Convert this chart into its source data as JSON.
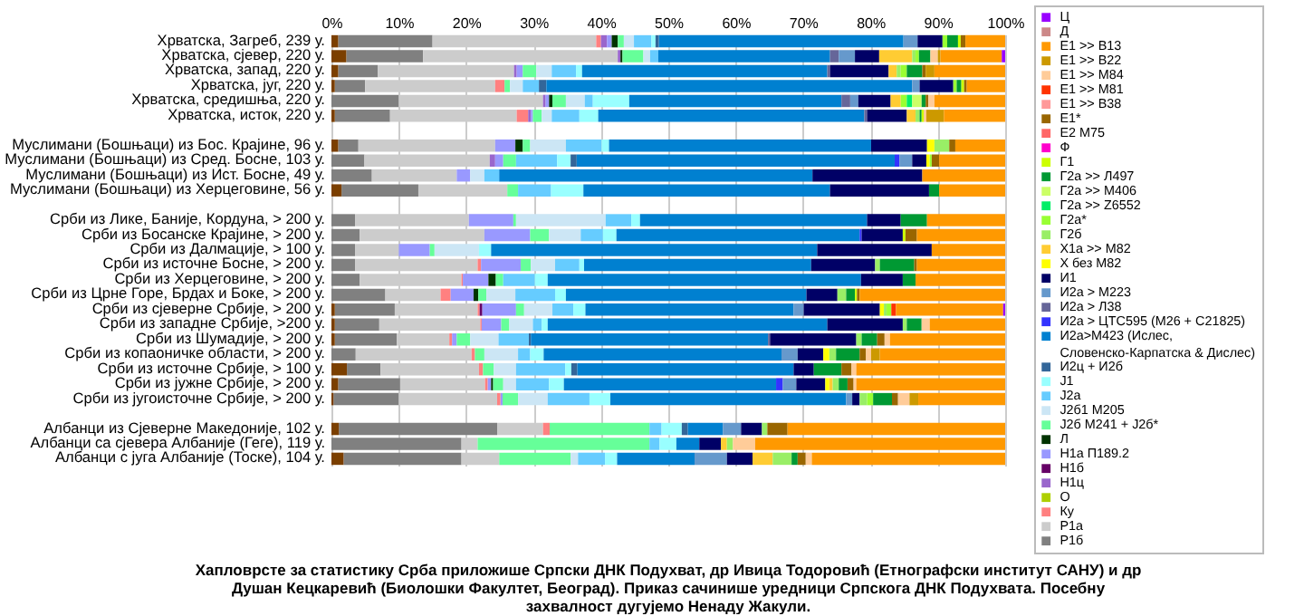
{
  "chart_data": {
    "type": "bar",
    "orientation": "horizontal",
    "stacked": true,
    "grid": "x",
    "legend": "right",
    "categories": [
      "Хрватска, Загреб, 239 у.",
      "Хрватска, сјевер, 220 у.",
      "Хрватска, запад, 220 у.",
      "Хрватска, југ, 220 у.",
      "Хрватска, средишња, 220 у.",
      "Хрватска, исток, 220 у.",
      null,
      "Муслимани (Бошњаци) из Бос. Крајине, 96 у.",
      "Муслимани (Бошњаци) из Сред. Босне, 103 у.",
      "Муслимани (Бошњаци) из Ист. Босне, 49 у.",
      "Муслимани (Бошњаци) из Херцеговине, 56 у.",
      null,
      "Срби из Лике, Баније, Кордуна, > 200 у.",
      "Срби из Босанске Крајине, > 200 у.",
      "Срби из Далмације, > 100 у.",
      "Срби из источне Босне, > 200 у.",
      "Срби из Херцеговине, > 200 у.",
      "Срби из Црне Горе, Брдах и Боке, > 200 у.",
      "Срби из сјеверне Србије, > 200 у.",
      "Срби из западне Србије, >200 у.",
      "Срби из Шумадије, > 200 у.",
      "Срби из копаоничке области, > 200 у.",
      "Срби из источне Србије, > 100 у.",
      "Срби из јужне Србије, > 200 у.",
      "Срби из југоисточне Србије, > 200 у.",
      null,
      "Албанци из Сјеверне Македоније, 102 у.",
      "Албанци са сјевера Албаније (Геге), 119 у.",
      "Албанци с југа Албаније (Тоске), 104 у."
    ],
    "xlim": [
      0,
      100
    ],
    "xticks": [
      {
        "value": 0,
        "label": "0%"
      },
      {
        "value": 10,
        "label": "10%"
      },
      {
        "value": 20,
        "label": "20%"
      },
      {
        "value": 30,
        "label": "30%"
      },
      {
        "value": 40,
        "label": "40%"
      },
      {
        "value": 50,
        "label": "50%"
      },
      {
        "value": 60,
        "label": "60%"
      },
      {
        "value": 70,
        "label": "70%"
      },
      {
        "value": 80,
        "label": "80%"
      },
      {
        "value": 90,
        "label": "90%"
      },
      {
        "value": 100,
        "label": "100%"
      }
    ],
    "annotations": [
      "Хапловрсте за статистику Срба приложише Српски ДНК Подухват, др Ивица Тодоровић (Етнографски институт САНУ) и др Душан Кецкаревић (Биолошки Факултет, Београд). Приказ сачинише уредници Српскога ДНК Подухвата. Посебну захвалност дугујемо Ненаду Жакули."
    ],
    "series": [
      {
        "color": "#7b3f00",
        "values": [
          1,
          2.2,
          1,
          0.5,
          0,
          0.5,
          null,
          1,
          0,
          0,
          1.5,
          null,
          0,
          0,
          0,
          0,
          0,
          0,
          0.5,
          0.5,
          0.5,
          0,
          2.3,
          1,
          0.3,
          null,
          1.1,
          0,
          1.8
        ]
      },
      {
        "name": "Р1б",
        "color": "#808080",
        "values": [
          14,
          11.4,
          5.9,
          4.5,
          10,
          8.2,
          null,
          3,
          4.9,
          6,
          11.4,
          null,
          3.5,
          4.2,
          3.5,
          3.5,
          4.2,
          8,
          8.9,
          6.6,
          9.2,
          3.6,
          5,
          9.2,
          9.7,
          null,
          23.5,
          19.3,
          17.5
        ]
      },
      {
        "name": "Р1а",
        "color": "#cccccc",
        "values": [
          24.3,
          28.9,
          20.2,
          19.3,
          21.4,
          18.8,
          null,
          20.3,
          18.6,
          12.6,
          13.2,
          null,
          16.9,
          18.5,
          6.5,
          18.2,
          15.1,
          8.2,
          12.3,
          15,
          7.8,
          17.2,
          14.6,
          12.6,
          14.6,
          null,
          6.8,
          2.4,
          5.6
        ]
      },
      {
        "name": "Ку",
        "color": "#ff8080",
        "values": [
          0.7,
          0,
          0,
          1.4,
          0,
          1.7,
          null,
          0,
          0,
          0,
          0,
          null,
          0,
          0,
          0,
          0.5,
          0.2,
          1.5,
          0.3,
          0.2,
          0.4,
          0.5,
          0.6,
          0.4,
          0.5,
          null,
          1,
          0,
          0
        ]
      },
      {
        "name": "О",
        "color": "#aecf00",
        "values": [
          0,
          0,
          0,
          0,
          0,
          0,
          null,
          0,
          0,
          0,
          0,
          null,
          0,
          0,
          0,
          0,
          0,
          0,
          0,
          0,
          0,
          0,
          0,
          0,
          0,
          null,
          0,
          0,
          0
        ]
      },
      {
        "name": "Н1ц",
        "color": "#9966cc",
        "values": [
          0.9,
          0.4,
          0.4,
          0,
          0.4,
          0.4,
          null,
          0,
          0.8,
          0,
          0,
          null,
          0,
          0,
          0,
          0,
          0,
          0,
          0,
          0,
          0,
          0,
          0,
          0,
          0,
          null,
          0,
          0,
          0
        ]
      },
      {
        "name": "Н1б",
        "color": "#660066",
        "values": [
          0,
          0,
          0,
          0,
          0,
          0,
          null,
          0,
          0,
          0,
          0,
          null,
          0,
          0,
          0,
          0,
          0,
          0,
          0.4,
          0,
          0,
          0,
          0,
          0,
          0,
          null,
          0,
          0,
          0
        ]
      },
      {
        "name": "Н1а П189.2",
        "color": "#9999ff",
        "values": [
          0.7,
          0,
          0.9,
          0,
          0.5,
          0.3,
          null,
          3,
          1.2,
          2,
          0,
          null,
          6.6,
          6.8,
          4.6,
          5.9,
          3.8,
          3.4,
          5,
          2.9,
          0.7,
          0,
          0,
          0.5,
          0.3,
          null,
          0,
          0,
          0
        ]
      },
      {
        "name": "Л",
        "color": "#003300",
        "values": [
          0.9,
          0.3,
          0,
          0,
          0.5,
          0,
          null,
          1.1,
          0,
          0,
          0,
          null,
          0,
          0,
          0,
          0,
          1.1,
          0.7,
          0,
          0,
          0,
          0,
          0,
          0.3,
          0,
          null,
          0,
          0,
          0
        ]
      },
      {
        "name": "J2б M241 + J2б*",
        "color": "#66ff99",
        "values": [
          0.9,
          3.1,
          2,
          0.8,
          2,
          1.3,
          null,
          1.1,
          1.9,
          0,
          1.6,
          null,
          0.4,
          2.8,
          0.7,
          1.5,
          1.1,
          1.2,
          1.2,
          1.2,
          2,
          1.4,
          1.6,
          1.5,
          2.3,
          null,
          14.8,
          25.5,
          10.6
        ]
      },
      {
        "name": "J2б1 M205",
        "color": "#cce6f5",
        "values": [
          1.5,
          1,
          2.3,
          1.9,
          2.8,
          1.5,
          null,
          5.3,
          0,
          2.1,
          0,
          null,
          13.3,
          4.7,
          6.6,
          3.6,
          0,
          4.3,
          4.2,
          3.5,
          4.2,
          5,
          3.3,
          1.9,
          4.4,
          null,
          0,
          0,
          1.1
        ]
      },
      {
        "name": "J2a",
        "color": "#66ccff",
        "values": [
          2.6,
          1.2,
          3.6,
          2.4,
          1.2,
          4.1,
          null,
          5.3,
          6.1,
          2.2,
          4.9,
          null,
          3.8,
          3.3,
          0,
          3.6,
          4.7,
          5.9,
          3.1,
          1.3,
          4.5,
          1.8,
          7.3,
          4.9,
          6.2,
          null,
          1.8,
          1.5,
          4
        ]
      },
      {
        "name": "J1",
        "color": "#99ffff",
        "values": [
          0.6,
          0,
          0.9,
          0,
          5.4,
          2.8,
          null,
          1.1,
          2,
          0,
          4.8,
          null,
          1.3,
          2,
          1.8,
          0.7,
          1.9,
          1.6,
          1.8,
          0.9,
          0,
          2,
          0.9,
          2.2,
          3.1,
          null,
          3,
          2.5,
          1.8
        ]
      },
      {
        "name": "И2ц + И2б",
        "color": "#336699",
        "values": [
          0.5,
          0,
          0,
          1.1,
          0,
          0,
          null,
          0,
          0.9,
          0,
          0,
          null,
          0,
          0,
          0,
          0,
          0,
          0,
          0,
          0,
          0.3,
          0,
          0.9,
          0,
          0,
          null,
          0.9,
          0,
          0
        ]
      },
      {
        "name": "И2а>M423 (Ислес, Словенско-Карпатска & Дислес)",
        "color": "#0080d0",
        "values": [
          36.3,
          25.5,
          36.4,
          54.3,
          31.5,
          39.5,
          null,
          38.9,
          47.2,
          46.5,
          36.6,
          null,
          33.7,
          36.1,
          48.4,
          33.7,
          46.5,
          35.7,
          30.9,
          41.5,
          35.2,
          35.3,
          32.1,
          31.5,
          35,
          null,
          5.2,
          3.4,
          11.5
        ]
      },
      {
        "name": "И2а > ЦТС595 (M26 + C21825)",
        "color": "#3333ff",
        "values": [
          0,
          0,
          0,
          0,
          0,
          0,
          null,
          0,
          0.7,
          0,
          0,
          null,
          0,
          0.3,
          0,
          0,
          0,
          0,
          0,
          0,
          0,
          0,
          0,
          1,
          0,
          null,
          0,
          0,
          0
        ]
      },
      {
        "name": "И2а > Л38",
        "color": "#666699",
        "values": [
          0,
          1.3,
          0.4,
          0,
          1.3,
          0.4,
          null,
          0,
          0,
          0,
          0,
          null,
          0,
          0,
          0,
          0,
          0,
          0,
          0,
          0,
          0.3,
          0,
          0,
          0,
          0,
          null,
          0,
          0,
          0
        ]
      },
      {
        "name": "И2а > M223",
        "color": "#6699cc",
        "values": [
          2.1,
          2.4,
          0,
          1.1,
          1.2,
          0,
          null,
          0,
          1.9,
          0,
          0,
          null,
          0,
          0,
          0,
          0,
          0,
          0,
          1.5,
          0,
          0,
          2.4,
          0,
          2,
          0.9,
          null,
          2.7,
          0,
          4.8
        ]
      },
      {
        "name": "И1",
        "color": "#000066",
        "values": [
          3.7,
          3.6,
          8.7,
          5,
          4.8,
          5.9,
          null,
          8.3,
          2.1,
          16.3,
          14.7,
          null,
          5,
          6.1,
          17,
          9.5,
          6.2,
          4.6,
          11.3,
          11.2,
          12.8,
          3.8,
          3,
          4.3,
          1.1,
          null,
          3.1,
          3.2,
          3.8
        ]
      },
      {
        "name": "Х без M82",
        "color": "#ffff00",
        "values": [
          0,
          0,
          0,
          0,
          0,
          0,
          null,
          1.1,
          0.5,
          0,
          0,
          null,
          0,
          0,
          0,
          0,
          0,
          0,
          0.6,
          0,
          0,
          0.9,
          0,
          0.6,
          0,
          null,
          0,
          0,
          0
        ]
      },
      {
        "name": "Х1а >> M82",
        "color": "#ffcc33",
        "values": [
          0,
          4.9,
          1.2,
          0,
          1.5,
          1.3,
          null,
          0,
          0,
          0,
          0,
          null,
          0,
          0,
          0,
          0,
          0,
          0,
          0,
          0,
          0,
          0,
          0,
          0.5,
          0,
          null,
          0,
          0.9,
          3
        ]
      },
      {
        "name": "Г2б",
        "color": "#99ee66",
        "values": [
          0,
          0.5,
          0.6,
          0,
          0,
          0.6,
          null,
          2.2,
          0,
          0,
          0,
          null,
          0,
          0,
          0,
          0.7,
          0,
          1.3,
          0.4,
          0.6,
          0.8,
          1,
          0,
          0.9,
          1.1,
          null,
          0.8,
          0.9,
          2.8
        ]
      },
      {
        "name": "Г2а*",
        "color": "#99ff33",
        "values": [
          0.7,
          0.5,
          0.9,
          0.5,
          0.9,
          0,
          null,
          0,
          0.3,
          0,
          0,
          null,
          0,
          0,
          0,
          0,
          0,
          0,
          0.7,
          0,
          0,
          0,
          0,
          0,
          0.9,
          null,
          0,
          0,
          0
        ]
      },
      {
        "name": "Г2а >> Z6552",
        "color": "#00ee66",
        "values": [
          0,
          0,
          0,
          0,
          0.8,
          0,
          null,
          0,
          0,
          0,
          0,
          null,
          0,
          0,
          0,
          0,
          0,
          0,
          0,
          0,
          0,
          0,
          0,
          0,
          0,
          null,
          0,
          0,
          0
        ]
      },
      {
        "name": "Г2а >> M406",
        "color": "#ccff66",
        "values": [
          0,
          0,
          0,
          0,
          1.4,
          0,
          null,
          0,
          0,
          0,
          0,
          null,
          0,
          0,
          0,
          0,
          0,
          0,
          0,
          0,
          0,
          0,
          0,
          0,
          0,
          null,
          0,
          0,
          0
        ]
      },
      {
        "name": "Г2а >> Л497",
        "color": "#009933",
        "values": [
          1.6,
          1.7,
          2.3,
          0.7,
          0.6,
          0.3,
          null,
          0,
          0,
          0,
          1.5,
          null,
          3.9,
          0,
          0,
          5.1,
          1.9,
          1.3,
          0,
          2.2,
          2.3,
          3.5,
          4.1,
          1.3,
          2.8,
          null,
          0,
          0,
          0.9
        ]
      },
      {
        "name": "Г1",
        "color": "#ccff00",
        "values": [
          0.4,
          0,
          0,
          0.4,
          0,
          0.3,
          null,
          0,
          0,
          0,
          0,
          null,
          0,
          0.4,
          0,
          0,
          0,
          0.3,
          0,
          0,
          0,
          0,
          0,
          0,
          0,
          null,
          0,
          0,
          0
        ]
      },
      {
        "name": "Ф",
        "color": "#ff00cc",
        "values": [
          0,
          0,
          0,
          0,
          0,
          0,
          null,
          0,
          0,
          0,
          0,
          null,
          0,
          0,
          0,
          0,
          0,
          0,
          0,
          0,
          0,
          0,
          0,
          0,
          0,
          null,
          0,
          0,
          0
        ]
      },
      {
        "name": "Е2 M75",
        "color": "#ff6666",
        "values": [
          0,
          0,
          0,
          0,
          0,
          0,
          null,
          0,
          0,
          0,
          0,
          null,
          0,
          0,
          0,
          0,
          0,
          0,
          0,
          0,
          0,
          0,
          0,
          0,
          0,
          null,
          0,
          0,
          0
        ]
      },
      {
        "name": "Е1*",
        "color": "#996600",
        "values": [
          0.7,
          0,
          0.5,
          0.4,
          0.4,
          0,
          null,
          0.9,
          1.1,
          0,
          0,
          null,
          0,
          1.7,
          0,
          0.4,
          0,
          0.4,
          0,
          0,
          1.1,
          0.9,
          1.5,
          0.9,
          0.9,
          null,
          3,
          0,
          1.2
        ]
      },
      {
        "name": "Е1 >> В38",
        "color": "#ff9999",
        "values": [
          0,
          0,
          0,
          0,
          0,
          0,
          null,
          0,
          0,
          0,
          0,
          null,
          0,
          0,
          0,
          0,
          0,
          0,
          0,
          0,
          0,
          0,
          0,
          0,
          0,
          null,
          0,
          0,
          0
        ]
      },
      {
        "name": "Е1 >> M81",
        "color": "#ff3300",
        "values": [
          0,
          0,
          0,
          0,
          0,
          0,
          null,
          0,
          0,
          0,
          0,
          null,
          0,
          0,
          0,
          0,
          0,
          0,
          0.7,
          0,
          0,
          0,
          0,
          0,
          0,
          null,
          0,
          0,
          0
        ]
      },
      {
        "name": "Е1 >> M84",
        "color": "#ffcc99",
        "values": [
          0,
          1.1,
          0,
          0,
          0.9,
          0.4,
          null,
          0,
          0,
          0,
          0,
          null,
          0,
          0,
          0,
          0,
          0,
          0,
          0,
          1.2,
          0.8,
          0.8,
          0.7,
          0.4,
          1.7,
          null,
          0,
          3.3,
          0.9
        ]
      },
      {
        "name": "Е1 >> В22",
        "color": "#cc9900",
        "values": [
          0,
          0.4,
          1.3,
          0,
          0,
          2.6,
          null,
          0,
          0,
          0,
          0,
          null,
          0,
          0,
          0,
          0,
          0,
          0,
          0,
          0,
          0,
          1.3,
          0,
          0,
          1.3,
          null,
          0,
          0,
          0
        ]
      },
      {
        "name": "Е1 >> В13",
        "color": "#ff9900",
        "values": [
          5.9,
          9.1,
          10.5,
          5.7,
          10.5,
          9.1,
          null,
          7.4,
          9.8,
          12.3,
          9.8,
          null,
          11.6,
          13.1,
          10.9,
          13.1,
          13.3,
          21.6,
          15.9,
          11.2,
          17.1,
          18.6,
          22.1,
          22.1,
          12.9,
          null,
          32.3,
          37.1,
          28.7
        ]
      },
      {
        "name": "Д",
        "color": "#cc8888",
        "values": [
          0,
          0,
          0,
          0,
          0,
          0,
          null,
          0,
          0,
          0,
          0,
          null,
          0,
          0,
          0,
          0,
          0,
          0,
          0,
          0,
          0,
          0,
          0,
          0,
          0,
          null,
          0,
          0,
          0
        ]
      },
      {
        "name": "Ц",
        "color": "#9900ff",
        "values": [
          0,
          0.5,
          0,
          0,
          0,
          0,
          null,
          0,
          0,
          0,
          0,
          null,
          0,
          0,
          0,
          0,
          0,
          0,
          0.3,
          0,
          0,
          0,
          0,
          0,
          0,
          null,
          0,
          0,
          0
        ]
      }
    ]
  }
}
